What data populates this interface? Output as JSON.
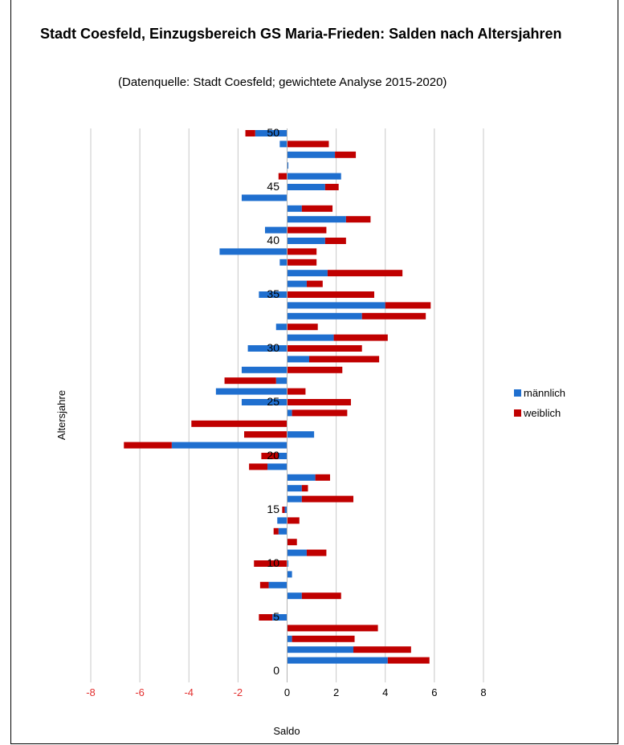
{
  "chart_data": {
    "type": "bar",
    "orientation": "horizontal",
    "stacked": true,
    "title": "Stadt Coesfeld, Einzugsbereich GS Maria-Frieden: Salden nach Altersjahren",
    "subtitle": "(Datenquelle: Stadt Coesfeld; gewichtete Analyse 2015-2020)",
    "xlabel": "Saldo",
    "ylabel": "Altersjahre",
    "xlim": [
      -8,
      8
    ],
    "xticks": [
      "-8",
      "-6",
      "-4",
      "-2",
      "0",
      "2",
      "4",
      "6",
      "8"
    ],
    "yticks": [
      "0",
      "5",
      "10",
      "15",
      "20",
      "25",
      "30",
      "35",
      "40",
      "45",
      "50"
    ],
    "grid": "vertical",
    "legend_position": "right",
    "categories": [
      1,
      2,
      3,
      4,
      5,
      6,
      7,
      8,
      9,
      10,
      11,
      12,
      13,
      14,
      15,
      16,
      17,
      18,
      19,
      20,
      21,
      22,
      23,
      24,
      25,
      26,
      27,
      28,
      29,
      30,
      31,
      32,
      33,
      34,
      35,
      36,
      37,
      38,
      39,
      40,
      41,
      42,
      43,
      44,
      45,
      46,
      47,
      48,
      49,
      50
    ],
    "series": [
      {
        "name": "männlich",
        "color": "#1f6fcf",
        "values": [
          4.1,
          2.7,
          0.2,
          0.0,
          -0.6,
          0.0,
          0.6,
          -0.75,
          0.2,
          0.05,
          0.8,
          0.0,
          -0.35,
          -0.4,
          -0.1,
          0.6,
          0.6,
          1.15,
          -0.8,
          -0.35,
          -4.7,
          1.1,
          0.0,
          0.2,
          -1.85,
          -2.9,
          -0.45,
          -1.85,
          0.9,
          -1.6,
          1.9,
          -0.45,
          3.05,
          4.0,
          -1.15,
          0.8,
          1.65,
          -0.3,
          -2.75,
          1.55,
          -0.9,
          2.4,
          0.6,
          -1.85,
          1.55,
          2.2,
          0.05,
          1.95,
          -0.3,
          -1.3
        ]
      },
      {
        "name": "weiblich",
        "color": "#c00000",
        "values": [
          1.7,
          2.35,
          2.55,
          3.7,
          -0.55,
          0.0,
          1.6,
          -0.35,
          0.0,
          -1.35,
          0.8,
          0.4,
          -0.2,
          0.5,
          -0.1,
          2.1,
          0.25,
          0.6,
          -0.75,
          -0.7,
          -1.95,
          -1.75,
          -3.9,
          2.25,
          2.6,
          0.75,
          -2.1,
          2.25,
          2.85,
          3.05,
          2.2,
          1.25,
          2.6,
          1.85,
          3.55,
          0.65,
          3.05,
          1.2,
          1.2,
          0.85,
          1.6,
          1.0,
          1.25,
          0.0,
          0.55,
          -0.35,
          0.0,
          0.85,
          1.7,
          -0.4
        ]
      }
    ]
  }
}
